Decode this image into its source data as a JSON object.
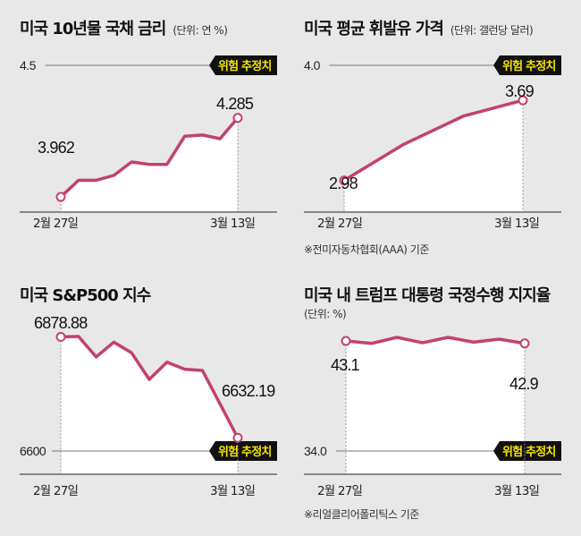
{
  "colors": {
    "line": "#c2426b",
    "background": "#e8e8e8",
    "fill": "#ffffff",
    "tag_bg": "#111111",
    "tag_text": "#f5e400"
  },
  "chart_data": [
    {
      "type": "line",
      "title": "미국 10년물 국채 금리",
      "unit": "(단위: 연 %)",
      "x_labels": [
        "2월 27일",
        "3월 13일"
      ],
      "ref_line": {
        "value": 4.5,
        "label": "4.5",
        "tag": "위험 추정치"
      },
      "start_label": "3.962",
      "end_label": "4.285",
      "ylim": [
        3.9,
        4.5
      ],
      "values": [
        3.962,
        4.03,
        4.03,
        4.05,
        4.105,
        4.095,
        4.095,
        4.21,
        4.215,
        4.2,
        4.285
      ]
    },
    {
      "type": "line",
      "title": "미국 평균 휘발유 가격",
      "unit": "(단위: 갤런당 달러)",
      "x_labels": [
        "2월 27일",
        "3월 13일"
      ],
      "ref_line": {
        "value": 4.0,
        "label": "4.0",
        "tag": "위험 추정치"
      },
      "start_label": "2.98",
      "end_label": "3.69",
      "note": "※전미자동차협회(AAA) 기준",
      "ylim": [
        2.7,
        4.0
      ],
      "values": [
        2.98,
        3.3,
        3.55,
        3.69
      ]
    },
    {
      "type": "line",
      "title": "미국 S&P500 지수",
      "unit": "",
      "x_labels": [
        "2월 27일",
        "3월 13일"
      ],
      "ref_line": {
        "value": 6600,
        "label": "6600",
        "tag": "위험 추정치"
      },
      "start_label": "6878.88",
      "end_label": "6632.19",
      "ylim": [
        6580,
        6880
      ],
      "values": [
        6878.88,
        6880,
        6830,
        6866,
        6840,
        6775,
        6817,
        6800,
        6797,
        6715,
        6632.19
      ]
    },
    {
      "type": "line",
      "title": "미국 내 트럼프 대통령 국정수행 지지율",
      "unit": "(단위: %)",
      "x_labels": [
        "2월 27일",
        "3월 13일"
      ],
      "ref_line": {
        "value": 34.0,
        "label": "34.0",
        "tag": "위험 추정치"
      },
      "start_label": "43.1",
      "end_label": "42.9",
      "note": "※리얼클리어폴리틱스 기준",
      "ylim": [
        32.3,
        44.0
      ],
      "values": [
        43.1,
        42.9,
        43.4,
        42.95,
        43.4,
        43.0,
        43.25,
        42.9
      ]
    }
  ]
}
